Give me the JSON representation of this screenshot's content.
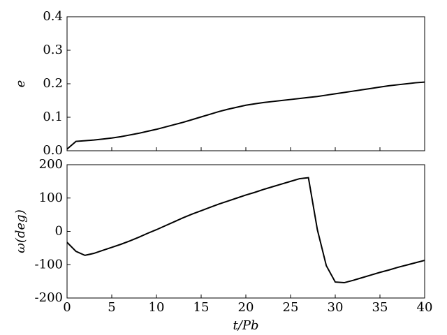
{
  "chart_data": [
    {
      "type": "line",
      "ylabel": "e",
      "x": [
        0,
        1,
        2,
        3,
        4,
        5,
        6,
        7,
        8,
        9,
        10,
        11,
        12,
        13,
        14,
        15,
        16,
        17,
        18,
        19,
        20,
        21,
        22,
        23,
        24,
        25,
        26,
        27,
        28,
        29,
        30,
        31,
        32,
        33,
        34,
        35,
        36,
        37,
        38,
        39,
        40
      ],
      "series": [
        {
          "name": "e",
          "color": "#000000",
          "values": [
            0.005,
            0.028,
            0.03,
            0.032,
            0.035,
            0.038,
            0.042,
            0.047,
            0.052,
            0.058,
            0.064,
            0.071,
            0.078,
            0.085,
            0.093,
            0.101,
            0.109,
            0.117,
            0.124,
            0.13,
            0.136,
            0.14,
            0.144,
            0.147,
            0.15,
            0.153,
            0.156,
            0.159,
            0.162,
            0.166,
            0.17,
            0.174,
            0.178,
            0.182,
            0.186,
            0.19,
            0.194,
            0.197,
            0.2,
            0.203,
            0.205
          ]
        }
      ],
      "xlim": [
        0,
        40
      ],
      "ylim": [
        0,
        0.4
      ],
      "yticks": [
        {
          "value": 0,
          "label": "0.0"
        },
        0.1,
        0.2,
        0.3,
        0.4
      ]
    },
    {
      "type": "line",
      "ylabel": "ω(deg)",
      "xlabel": "t/Pb",
      "x": [
        0,
        1,
        2,
        3,
        4,
        5,
        6,
        7,
        8,
        9,
        10,
        11,
        12,
        13,
        14,
        15,
        16,
        17,
        18,
        19,
        20,
        21,
        22,
        23,
        24,
        25,
        26,
        27,
        28,
        29,
        30,
        31,
        32,
        33,
        34,
        35,
        36,
        37,
        38,
        39,
        40
      ],
      "series": [
        {
          "name": "ω",
          "color": "#000000",
          "values": [
            -33,
            -60,
            -72,
            -66,
            -57,
            -48,
            -39,
            -29,
            -18,
            -6,
            5,
            17,
            29,
            41,
            52,
            62,
            72,
            82,
            91,
            100,
            109,
            117,
            126,
            134,
            142,
            150,
            158,
            161,
            5,
            -103,
            -152,
            -154,
            -147,
            -139,
            -131,
            -123,
            -116,
            -108,
            -101,
            -94,
            -87
          ]
        }
      ],
      "xlim": [
        0,
        40
      ],
      "xticks": [
        0,
        5,
        10,
        15,
        20,
        25,
        30,
        35,
        40
      ],
      "ylim": [
        -200,
        200
      ],
      "yticks": [
        -200,
        -100,
        0,
        100,
        200
      ]
    }
  ]
}
